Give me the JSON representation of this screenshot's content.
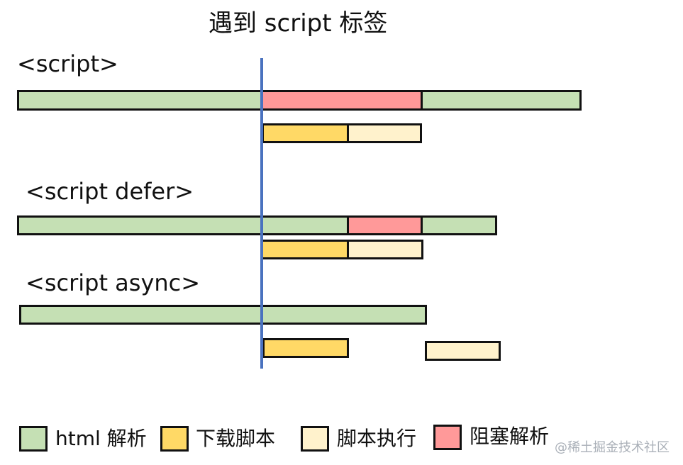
{
  "title": "遇到 script 标签",
  "colors": {
    "html_parse": "#c5e0b4",
    "script_download": "#ffd966",
    "script_execute": "#fff2cc",
    "block_parse": "#ff9999",
    "marker_line": "#4a72bf"
  },
  "sections": [
    {
      "label": "<script>"
    },
    {
      "label": "<script defer>"
    },
    {
      "label": "<script async>"
    }
  ],
  "legend": [
    {
      "label": "html 解析",
      "color": "#c5e0b4"
    },
    {
      "label": "下载脚本",
      "color": "#ffd966"
    },
    {
      "label": "脚本执行",
      "color": "#fff2cc"
    },
    {
      "label": "阻塞解析",
      "color": "#ff9999"
    }
  ],
  "watermark": "@稀土掘金技术社区"
}
